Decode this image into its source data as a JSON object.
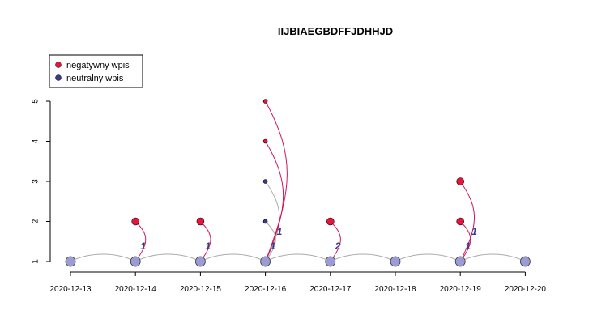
{
  "chart_data": {
    "type": "scatter",
    "title": "IIJBIAEGBDFFJDHHJD",
    "xlabel": "",
    "ylabel": "",
    "x_ticks": [
      "2020-12-13",
      "2020-12-14",
      "2020-12-15",
      "2020-12-16",
      "2020-12-17",
      "2020-12-18",
      "2020-12-19",
      "2020-12-20"
    ],
    "y_ticks": [
      "1",
      "2",
      "3",
      "4",
      "5"
    ],
    "ylim": [
      1,
      5
    ],
    "grid": false,
    "legend_position": "top-left",
    "legend": [
      {
        "label": "negatywny wpis",
        "color": "#e8143c"
      },
      {
        "label": "neutralny wpis",
        "color": "#3a3a8c"
      }
    ],
    "timeline_color": "#9b9bd6",
    "neutral_edge_color": "#aaaaaa",
    "negative_edge_color": "#d4145a",
    "timeline_points": [
      {
        "x": "2020-12-13",
        "y": 1
      },
      {
        "x": "2020-12-14",
        "y": 1
      },
      {
        "x": "2020-12-15",
        "y": 1
      },
      {
        "x": "2020-12-16",
        "y": 1
      },
      {
        "x": "2020-12-17",
        "y": 1
      },
      {
        "x": "2020-12-18",
        "y": 1
      },
      {
        "x": "2020-12-19",
        "y": 1
      },
      {
        "x": "2020-12-20",
        "y": 1
      }
    ],
    "entries": [
      {
        "x": "2020-12-14",
        "y": 2,
        "type": "negatywny",
        "size": "large"
      },
      {
        "x": "2020-12-15",
        "y": 2,
        "type": "negatywny",
        "size": "large"
      },
      {
        "x": "2020-12-16",
        "y": 2,
        "type": "neutralny",
        "size": "small"
      },
      {
        "x": "2020-12-16",
        "y": 3,
        "type": "neutralny",
        "size": "small"
      },
      {
        "x": "2020-12-16",
        "y": 4,
        "type": "negatywny",
        "size": "small"
      },
      {
        "x": "2020-12-16",
        "y": 5,
        "type": "negatywny",
        "size": "small"
      },
      {
        "x": "2020-12-17",
        "y": 2,
        "type": "negatywny",
        "size": "large"
      },
      {
        "x": "2020-12-19",
        "y": 2,
        "type": "negatywny",
        "size": "large"
      },
      {
        "x": "2020-12-19",
        "y": 3,
        "type": "negatywny",
        "size": "large"
      }
    ],
    "edge_labels": [
      {
        "x": "2020-12-14",
        "label": "1"
      },
      {
        "x": "2020-12-15",
        "label": "1"
      },
      {
        "x": "2020-12-16",
        "label": "1"
      },
      {
        "x": "2020-12-16",
        "label": "1"
      },
      {
        "x": "2020-12-17",
        "label": "2"
      },
      {
        "x": "2020-12-19",
        "label": "1"
      },
      {
        "x": "2020-12-19",
        "label": "1"
      }
    ]
  }
}
